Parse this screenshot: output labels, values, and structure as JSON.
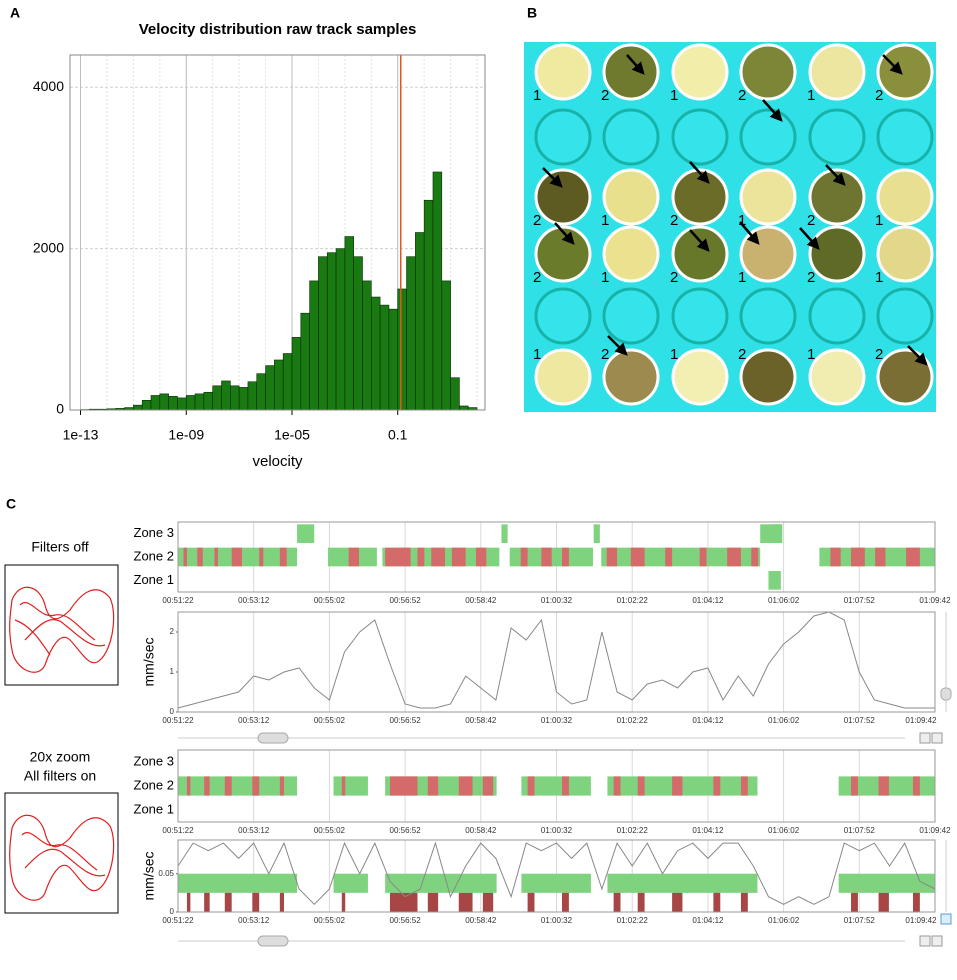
{
  "panel_labels": [
    "A",
    "B",
    "C"
  ],
  "conditions": {
    "top": [
      "Filters off"
    ],
    "bottom": [
      "20x zoom",
      "All filters on"
    ]
  },
  "plate": {
    "label_rows": [
      [
        "1",
        "2",
        "1",
        "2",
        "1",
        "2"
      ],
      [
        "2",
        "1",
        "2",
        "1",
        "2",
        "1"
      ],
      [
        "2",
        "1",
        "2",
        "1",
        "2",
        "1"
      ],
      [
        "1",
        "2",
        "1",
        "2",
        "1",
        "2"
      ]
    ]
  },
  "chart_data": [
    {
      "type": "histogram",
      "title": "Velocity distribution raw track samples",
      "x_label": "velocity",
      "x_log": true,
      "bins": [
        1e-13,
        2.154e-13,
        4.642e-13,
        1e-12,
        2.154e-12,
        4.642e-12,
        1e-11,
        2.154e-11,
        4.642e-11,
        1e-10,
        2.154e-10,
        4.642e-10,
        1e-09,
        2.154e-09,
        4.642e-09,
        1e-08,
        2.154e-08,
        4.642e-08,
        1e-07,
        2.154e-07,
        4.642e-07,
        1e-06,
        2.154e-06,
        4.642e-06,
        1e-05,
        2.154e-05,
        4.642e-05,
        0.0001,
        0.0002154,
        0.0004642,
        0.001,
        0.002154,
        0.004642,
        0.01,
        0.02154,
        0.04642,
        0.1,
        0.2154,
        0.4642,
        1,
        2.154,
        4.642,
        10,
        21.54,
        46.42,
        100
      ],
      "counts": [
        5,
        10,
        10,
        15,
        20,
        30,
        60,
        120,
        180,
        200,
        170,
        150,
        180,
        200,
        220,
        300,
        360,
        300,
        280,
        350,
        450,
        550,
        620,
        700,
        900,
        1200,
        1600,
        1900,
        1950,
        2000,
        2150,
        1900,
        1600,
        1400,
        1300,
        1250,
        1500,
        1900,
        2200,
        2600,
        2950,
        1600,
        400,
        50,
        30
      ],
      "color": "#1a7a12",
      "grid": true,
      "marker_line": {
        "value": 0.13,
        "color": "#e0561b"
      },
      "xlim": [
        4e-14,
        200
      ],
      "xticks": [
        1e-13,
        {
          "value": 1e-09,
          "label": "1e-09"
        },
        {
          "value": 1e-05,
          "label": "1e-05"
        },
        0.1
      ],
      "ylim": [
        0,
        4400
      ],
      "yticks": [
        0,
        2000,
        4000
      ]
    },
    {
      "type": "zone",
      "categories": [
        "Zone 3",
        "Zone 2",
        "Zone 1"
      ],
      "color": "#7fd37f",
      "red_color": "#d46a6a",
      "segments": {
        "start": [
          3082,
          3255,
          3300,
          3379,
          3552,
          3564,
          3686,
          3697,
          3928,
          3941,
          3949,
          3955,
          3940,
          4014
        ],
        "end": [
          3255,
          3280,
          3371,
          3549,
          3561,
          3685,
          3695,
          3928,
          3960,
          3960,
          3953,
          3958,
          3958,
          4182
        ],
        "zone": [
          "Zone 2",
          "Zone 3",
          "Zone 2",
          "Zone 2",
          "Zone 3",
          "Zone 2",
          "Zone 3",
          "Zone 2",
          "Zone 3",
          "Zone 3",
          "Zone 3",
          "Zone 3",
          "Zone 1",
          "Zone 2"
        ]
      },
      "red_segments": {
        "start": [
          3090,
          3110,
          3135,
          3160,
          3200,
          3230,
          3330,
          3383,
          3430,
          3450,
          3480,
          3515,
          3580,
          3610,
          3640,
          3705,
          3740,
          3790,
          3840,
          3880,
          3915,
          4030,
          4060,
          4095,
          4140
        ],
        "end": [
          3095,
          3118,
          3140,
          3175,
          3206,
          3240,
          3345,
          3420,
          3440,
          3470,
          3500,
          3530,
          3590,
          3625,
          3650,
          3720,
          3760,
          3800,
          3850,
          3900,
          3925,
          4045,
          4080,
          4110,
          4160
        ]
      },
      "xlim": [
        3082,
        4182
      ],
      "xticks": [
        {
          "value": 3082,
          "label": "00:51:22"
        },
        {
          "value": 3192,
          "label": "00:53:12"
        },
        {
          "value": 3302,
          "label": "00:55:02"
        },
        {
          "value": 3412,
          "label": "00:56:52"
        },
        {
          "value": 3522,
          "label": "00:58:42"
        },
        {
          "value": 3632,
          "label": "01:00:32"
        },
        {
          "value": 3742,
          "label": "01:02:22"
        },
        {
          "value": 3852,
          "label": "01:04:12"
        },
        {
          "value": 3962,
          "label": "01:06:02"
        },
        {
          "value": 4072,
          "label": "01:07:52"
        },
        {
          "value": 4182,
          "label": "01:09:42"
        }
      ]
    },
    {
      "type": "line",
      "y_label": "mm/sec",
      "color": "#888888",
      "x": [
        3082,
        3104,
        3126,
        3148,
        3170,
        3192,
        3214,
        3236,
        3258,
        3280,
        3302,
        3324,
        3346,
        3368,
        3390,
        3412,
        3434,
        3456,
        3478,
        3500,
        3522,
        3544,
        3566,
        3588,
        3610,
        3632,
        3654,
        3676,
        3698,
        3720,
        3742,
        3764,
        3786,
        3808,
        3830,
        3852,
        3874,
        3896,
        3918,
        3940,
        3962,
        3984,
        4006,
        4028,
        4050,
        4072,
        4094,
        4116,
        4138,
        4160,
        4182
      ],
      "values": [
        0.1,
        0.2,
        0.3,
        0.4,
        0.5,
        0.9,
        0.8,
        1.0,
        1.1,
        0.6,
        0.3,
        1.5,
        2.0,
        2.3,
        1.2,
        0.2,
        0.1,
        0.1,
        0.2,
        0.9,
        0.6,
        0.3,
        2.1,
        1.8,
        2.3,
        0.5,
        0.2,
        0.3,
        2.0,
        0.5,
        0.3,
        0.7,
        0.8,
        0.6,
        1.0,
        1.1,
        0.3,
        0.9,
        0.4,
        1.2,
        1.7,
        2.0,
        2.4,
        2.5,
        2.3,
        1.0,
        0.3,
        0.2,
        0.1,
        0.1,
        0.1
      ],
      "xlim": [
        3082,
        4182
      ],
      "xticks": [
        {
          "value": 3082,
          "label": "00:51:22"
        },
        {
          "value": 3192,
          "label": "00:53:12"
        },
        {
          "value": 3302,
          "label": "00:55:02"
        },
        {
          "value": 3412,
          "label": "00:56:52"
        },
        {
          "value": 3522,
          "label": "00:58:42"
        },
        {
          "value": 3632,
          "label": "01:00:32"
        },
        {
          "value": 3742,
          "label": "01:02:22"
        },
        {
          "value": 3852,
          "label": "01:04:12"
        },
        {
          "value": 3962,
          "label": "01:06:02"
        },
        {
          "value": 4072,
          "label": "01:07:52"
        },
        {
          "value": 4182,
          "label": "01:09:42"
        }
      ],
      "ylim": [
        0,
        2.5
      ],
      "yticks": [
        0,
        1,
        2
      ]
    },
    {
      "type": "zone",
      "categories": [
        "Zone 3",
        "Zone 2",
        "Zone 1"
      ],
      "color": "#7fd37f",
      "red_color": "#d46a6a",
      "segments": {
        "start": [
          3082,
          3308,
          3383,
          3581,
          3706,
          4042
        ],
        "end": [
          3255,
          3358,
          3545,
          3682,
          3924,
          4182
        ],
        "zone": [
          "Zone 2",
          "Zone 2",
          "Zone 2",
          "Zone 2",
          "Zone 2",
          "Zone 2"
        ]
      },
      "red_segments": {
        "start": [
          3095,
          3120,
          3150,
          3190,
          3230,
          3320,
          3390,
          3445,
          3490,
          3525,
          3590,
          3640,
          3715,
          3750,
          3800,
          3860,
          3900,
          4060,
          4100,
          4150
        ],
        "end": [
          3100,
          3128,
          3160,
          3200,
          3236,
          3325,
          3430,
          3460,
          3510,
          3540,
          3600,
          3650,
          3725,
          3760,
          3815,
          3870,
          3910,
          4070,
          4115,
          4160
        ]
      },
      "xlim": [
        3082,
        4182
      ],
      "xticks": [
        {
          "value": 3082,
          "label": "00:51:22"
        },
        {
          "value": 3192,
          "label": "00:53:12"
        },
        {
          "value": 3302,
          "label": "00:55:02"
        },
        {
          "value": 3412,
          "label": "00:56:52"
        },
        {
          "value": 3522,
          "label": "00:58:42"
        },
        {
          "value": 3632,
          "label": "01:00:32"
        },
        {
          "value": 3742,
          "label": "01:02:22"
        },
        {
          "value": 3852,
          "label": "01:04:12"
        },
        {
          "value": 3962,
          "label": "01:06:02"
        },
        {
          "value": 4072,
          "label": "01:07:52"
        },
        {
          "value": 4182,
          "label": "01:09:42"
        }
      ]
    },
    {
      "type": "line",
      "y_label": "mm/sec",
      "color": "#888888",
      "bands": [
        {
          "range": [
            0.025,
            0.05
          ],
          "color": "#7fd37f"
        },
        {
          "range": [
            0,
            0.025
          ],
          "color": "#a84545"
        }
      ],
      "x": [
        3082,
        3104,
        3126,
        3148,
        3170,
        3192,
        3214,
        3236,
        3258,
        3280,
        3302,
        3324,
        3346,
        3368,
        3390,
        3412,
        3434,
        3456,
        3478,
        3500,
        3522,
        3544,
        3566,
        3588,
        3610,
        3632,
        3654,
        3676,
        3698,
        3720,
        3742,
        3764,
        3786,
        3808,
        3830,
        3852,
        3874,
        3896,
        3918,
        3940,
        3962,
        3984,
        4006,
        4028,
        4050,
        4072,
        4094,
        4116,
        4138,
        4160,
        4182
      ],
      "values": [
        0.06,
        0.09,
        0.08,
        0.09,
        0.07,
        0.09,
        0.05,
        0.09,
        0.03,
        0.01,
        0.03,
        0.09,
        0.05,
        0.09,
        0.04,
        0.02,
        0.03,
        0.09,
        0.02,
        0.06,
        0.09,
        0.07,
        0.02,
        0.09,
        0.08,
        0.09,
        0.07,
        0.09,
        0.03,
        0.09,
        0.06,
        0.09,
        0.05,
        0.08,
        0.09,
        0.07,
        0.09,
        0.09,
        0.06,
        0.02,
        0.01,
        0.02,
        0.01,
        0.02,
        0.09,
        0.08,
        0.09,
        0.06,
        0.09,
        0.04,
        0.03
      ],
      "xlim": [
        3082,
        4182
      ],
      "xticks": [
        {
          "value": 3082,
          "label": "00:51:22"
        },
        {
          "value": 3192,
          "label": "00:53:12"
        },
        {
          "value": 3302,
          "label": "00:55:02"
        },
        {
          "value": 3412,
          "label": "00:56:52"
        },
        {
          "value": 3522,
          "label": "00:58:42"
        },
        {
          "value": 3632,
          "label": "01:00:32"
        },
        {
          "value": 3742,
          "label": "01:02:22"
        },
        {
          "value": 3852,
          "label": "01:04:12"
        },
        {
          "value": 3962,
          "label": "01:06:02"
        },
        {
          "value": 4072,
          "label": "01:07:52"
        },
        {
          "value": 4182,
          "label": "01:09:42"
        }
      ],
      "ylim": [
        0,
        0.094
      ],
      "yticks": [
        0,
        0.05
      ]
    }
  ]
}
